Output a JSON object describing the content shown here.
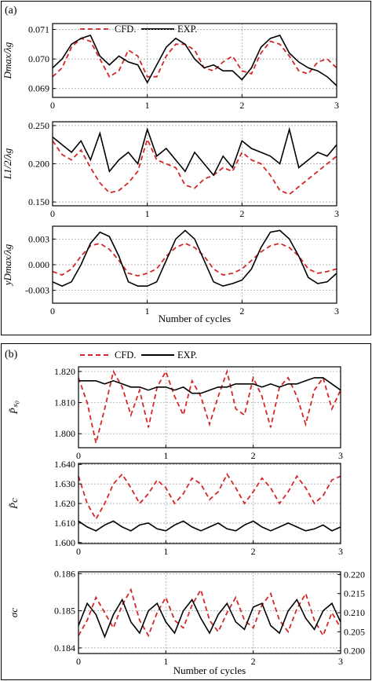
{
  "figure": {
    "parts": [
      {
        "label": "(a)",
        "legend": [
          "CFD.",
          "EXP."
        ]
      },
      {
        "label": "(b)",
        "legend": [
          "CFD.",
          "EXP."
        ]
      }
    ]
  },
  "chart_data": [
    {
      "type": "line",
      "id": "a1",
      "ylabel": "Dmax/λg",
      "xlabel": "",
      "xlim": [
        0,
        3
      ],
      "ylim": [
        0.0687,
        0.0712
      ],
      "xticks": [
        "0",
        "1",
        "2",
        "3"
      ],
      "yticks": [
        "0.069",
        "0.070",
        "0.071"
      ],
      "ytickvals": [
        0.069,
        0.07,
        0.071
      ],
      "grid": true,
      "series": [
        {
          "name": "CFD.",
          "color": "#d62728",
          "dash": true,
          "x": [
            0,
            0.1,
            0.2,
            0.3,
            0.4,
            0.5,
            0.6,
            0.7,
            0.8,
            0.9,
            1.0,
            1.1,
            1.2,
            1.3,
            1.4,
            1.5,
            1.6,
            1.7,
            1.8,
            1.9,
            2.0,
            2.1,
            2.2,
            2.3,
            2.4,
            2.5,
            2.6,
            2.7,
            2.8,
            2.9,
            3.0
          ],
          "y": [
            0.0694,
            0.0697,
            0.0704,
            0.0707,
            0.0706,
            0.07,
            0.0694,
            0.0696,
            0.0703,
            0.0701,
            0.0694,
            0.0694,
            0.0701,
            0.0705,
            0.0705,
            0.0703,
            0.0697,
            0.0696,
            0.0699,
            0.0701,
            0.0696,
            0.0695,
            0.0702,
            0.0706,
            0.0705,
            0.0701,
            0.0696,
            0.0695,
            0.0699,
            0.07,
            0.0697
          ]
        },
        {
          "name": "EXP.",
          "color": "#000000",
          "dash": false,
          "x": [
            0,
            0.1,
            0.2,
            0.3,
            0.4,
            0.5,
            0.6,
            0.7,
            0.8,
            0.9,
            1.0,
            1.1,
            1.2,
            1.3,
            1.4,
            1.5,
            1.6,
            1.7,
            1.8,
            1.9,
            2.0,
            2.1,
            2.2,
            2.3,
            2.4,
            2.5,
            2.6,
            2.7,
            2.8,
            2.9,
            3.0
          ],
          "y": [
            0.0697,
            0.07,
            0.0705,
            0.0707,
            0.0708,
            0.0701,
            0.0698,
            0.0701,
            0.0699,
            0.0698,
            0.0692,
            0.0698,
            0.0704,
            0.0707,
            0.0705,
            0.07,
            0.0697,
            0.0698,
            0.0696,
            0.0696,
            0.0693,
            0.0697,
            0.0704,
            0.0707,
            0.0708,
            0.0702,
            0.0699,
            0.0697,
            0.0696,
            0.0694,
            0.0691
          ]
        }
      ]
    },
    {
      "type": "line",
      "id": "a2",
      "ylabel": "L1/2/λg",
      "xlabel": "",
      "xlim": [
        0,
        3
      ],
      "ylim": [
        0.145,
        0.255
      ],
      "xticks": [
        "0",
        "1",
        "2",
        "3"
      ],
      "yticks": [
        "0.150",
        "0.200",
        "0.250"
      ],
      "ytickvals": [
        0.15,
        0.2,
        0.25
      ],
      "grid": true,
      "series": [
        {
          "name": "CFD.",
          "color": "#d62728",
          "dash": true,
          "x": [
            0,
            0.1,
            0.2,
            0.3,
            0.4,
            0.5,
            0.6,
            0.7,
            0.8,
            0.9,
            1.0,
            1.1,
            1.2,
            1.3,
            1.4,
            1.5,
            1.6,
            1.7,
            1.8,
            1.9,
            2.0,
            2.1,
            2.2,
            2.3,
            2.4,
            2.5,
            2.6,
            2.7,
            2.8,
            2.9,
            3.0
          ],
          "y": [
            0.23,
            0.212,
            0.205,
            0.218,
            0.195,
            0.175,
            0.162,
            0.165,
            0.175,
            0.19,
            0.232,
            0.205,
            0.2,
            0.195,
            0.172,
            0.168,
            0.18,
            0.185,
            0.195,
            0.19,
            0.215,
            0.205,
            0.2,
            0.185,
            0.165,
            0.16,
            0.17,
            0.18,
            0.19,
            0.2,
            0.21
          ]
        },
        {
          "name": "EXP.",
          "color": "#000000",
          "dash": false,
          "x": [
            0,
            0.1,
            0.2,
            0.3,
            0.4,
            0.5,
            0.6,
            0.7,
            0.8,
            0.9,
            1.0,
            1.1,
            1.2,
            1.3,
            1.4,
            1.5,
            1.6,
            1.7,
            1.8,
            1.9,
            2.0,
            2.1,
            2.2,
            2.3,
            2.4,
            2.5,
            2.6,
            2.7,
            2.8,
            2.9,
            3.0
          ],
          "y": [
            0.235,
            0.225,
            0.215,
            0.23,
            0.205,
            0.24,
            0.19,
            0.205,
            0.215,
            0.2,
            0.245,
            0.21,
            0.22,
            0.205,
            0.19,
            0.215,
            0.2,
            0.185,
            0.21,
            0.195,
            0.23,
            0.22,
            0.215,
            0.21,
            0.2,
            0.245,
            0.195,
            0.205,
            0.215,
            0.21,
            0.225
          ]
        }
      ]
    },
    {
      "type": "line",
      "id": "a3",
      "ylabel": "yDmax/λg",
      "xlabel": "Number of cycles",
      "xlim": [
        0,
        3
      ],
      "ylim": [
        -0.0045,
        0.0045
      ],
      "xticks": [
        "0",
        "1",
        "2",
        "3"
      ],
      "yticks": [
        "-0.003",
        "0.000",
        "0.003"
      ],
      "ytickvals": [
        -0.003,
        0.0,
        0.003
      ],
      "grid": true,
      "series": [
        {
          "name": "CFD.",
          "color": "#d62728",
          "dash": true,
          "x": [
            0,
            0.1,
            0.2,
            0.3,
            0.4,
            0.5,
            0.6,
            0.7,
            0.8,
            0.9,
            1.0,
            1.1,
            1.2,
            1.3,
            1.4,
            1.5,
            1.6,
            1.7,
            1.8,
            1.9,
            2.0,
            2.1,
            2.2,
            2.3,
            2.4,
            2.5,
            2.6,
            2.7,
            2.8,
            2.9,
            3.0
          ],
          "y": [
            -0.0008,
            -0.0012,
            -0.0005,
            0.001,
            0.0022,
            0.0025,
            0.0018,
            0.0005,
            -0.001,
            -0.0013,
            -0.001,
            -0.0005,
            0.001,
            0.002,
            0.0025,
            0.002,
            0.001,
            -0.0005,
            -0.0012,
            -0.001,
            -0.0005,
            0.0005,
            0.0015,
            0.0022,
            0.0025,
            0.002,
            0.001,
            -0.0005,
            -0.001,
            -0.0008,
            -0.0005
          ]
        },
        {
          "name": "EXP.",
          "color": "#000000",
          "dash": false,
          "x": [
            0,
            0.1,
            0.2,
            0.3,
            0.4,
            0.5,
            0.6,
            0.7,
            0.8,
            0.9,
            1.0,
            1.1,
            1.2,
            1.3,
            1.4,
            1.5,
            1.6,
            1.7,
            1.8,
            1.9,
            2.0,
            2.1,
            2.2,
            2.3,
            2.4,
            2.5,
            2.6,
            2.7,
            2.8,
            2.9,
            3.0
          ],
          "y": [
            -0.002,
            -0.0025,
            -0.002,
            0.0,
            0.0025,
            0.0038,
            0.0033,
            0.001,
            -0.002,
            -0.0025,
            -0.0025,
            -0.002,
            0.0005,
            0.003,
            0.004,
            0.003,
            0.0005,
            -0.002,
            -0.0025,
            -0.0022,
            -0.0018,
            -0.0005,
            0.002,
            0.0038,
            0.004,
            0.003,
            0.001,
            -0.0015,
            -0.0022,
            -0.002,
            -0.001
          ]
        }
      ]
    },
    {
      "type": "line",
      "id": "b1",
      "ylabel": "P̃ₛ₀",
      "xlabel": "",
      "xlim": [
        0,
        3
      ],
      "ylim": [
        1.7955,
        1.8215
      ],
      "xticks": [
        "0",
        "1",
        "2",
        "3"
      ],
      "yticks": [
        "1.800",
        "1.810",
        "1.820"
      ],
      "ytickvals": [
        1.8,
        1.81,
        1.82
      ],
      "grid": true,
      "series": [
        {
          "name": "CFD.",
          "color": "#d62728",
          "dash": true,
          "x": [
            0,
            0.1,
            0.2,
            0.3,
            0.4,
            0.5,
            0.6,
            0.7,
            0.8,
            0.9,
            1.0,
            1.1,
            1.2,
            1.3,
            1.4,
            1.5,
            1.6,
            1.7,
            1.8,
            1.9,
            2.0,
            2.1,
            2.2,
            2.3,
            2.4,
            2.5,
            2.6,
            2.7,
            2.8,
            2.9,
            3.0
          ],
          "y": [
            1.818,
            1.81,
            1.797,
            1.808,
            1.82,
            1.815,
            1.806,
            1.814,
            1.802,
            1.815,
            1.82,
            1.812,
            1.806,
            1.817,
            1.812,
            1.803,
            1.812,
            1.82,
            1.808,
            1.806,
            1.818,
            1.812,
            1.802,
            1.815,
            1.818,
            1.812,
            1.803,
            1.814,
            1.818,
            1.808,
            1.814
          ]
        },
        {
          "name": "EXP.",
          "color": "#000000",
          "dash": false,
          "x": [
            0,
            0.1,
            0.2,
            0.3,
            0.4,
            0.5,
            0.6,
            0.7,
            0.8,
            0.9,
            1.0,
            1.1,
            1.2,
            1.3,
            1.4,
            1.5,
            1.6,
            1.7,
            1.8,
            1.9,
            2.0,
            2.1,
            2.2,
            2.3,
            2.4,
            2.5,
            2.6,
            2.7,
            2.8,
            2.9,
            3.0
          ],
          "y": [
            1.817,
            1.817,
            1.817,
            1.816,
            1.817,
            1.816,
            1.815,
            1.815,
            1.814,
            1.815,
            1.815,
            1.814,
            1.815,
            1.813,
            1.813,
            1.814,
            1.815,
            1.815,
            1.816,
            1.816,
            1.816,
            1.815,
            1.816,
            1.815,
            1.816,
            1.816,
            1.817,
            1.818,
            1.818,
            1.816,
            1.814
          ]
        }
      ]
    },
    {
      "type": "line",
      "id": "b2",
      "ylabel": "P̃c",
      "xlabel": "",
      "xlim": [
        0,
        3
      ],
      "ylim": [
        1.5995,
        1.6405
      ],
      "xticks": [
        "0",
        "1",
        "2",
        "3"
      ],
      "yticks": [
        "1.600",
        "1.610",
        "1.620",
        "1.630",
        "1.640"
      ],
      "ytickvals": [
        1.6,
        1.61,
        1.62,
        1.63,
        1.64
      ],
      "grid": true,
      "series": [
        {
          "name": "CFD.",
          "color": "#d62728",
          "dash": true,
          "x": [
            0,
            0.1,
            0.2,
            0.3,
            0.4,
            0.5,
            0.6,
            0.7,
            0.8,
            0.9,
            1.0,
            1.1,
            1.2,
            1.3,
            1.4,
            1.5,
            1.6,
            1.7,
            1.8,
            1.9,
            2.0,
            2.1,
            2.2,
            2.3,
            2.4,
            2.5,
            2.6,
            2.7,
            2.8,
            2.9,
            3.0
          ],
          "y": [
            1.634,
            1.62,
            1.612,
            1.62,
            1.63,
            1.635,
            1.628,
            1.62,
            1.625,
            1.632,
            1.628,
            1.62,
            1.625,
            1.633,
            1.63,
            1.622,
            1.626,
            1.635,
            1.628,
            1.62,
            1.626,
            1.633,
            1.628,
            1.62,
            1.626,
            1.634,
            1.628,
            1.62,
            1.624,
            1.632,
            1.634
          ]
        },
        {
          "name": "EXP.",
          "color": "#000000",
          "dash": false,
          "x": [
            0,
            0.1,
            0.2,
            0.3,
            0.4,
            0.5,
            0.6,
            0.7,
            0.8,
            0.9,
            1.0,
            1.1,
            1.2,
            1.3,
            1.4,
            1.5,
            1.6,
            1.7,
            1.8,
            1.9,
            2.0,
            2.1,
            2.2,
            2.3,
            2.4,
            2.5,
            2.6,
            2.7,
            2.8,
            2.9,
            3.0
          ],
          "y": [
            1.611,
            1.608,
            1.606,
            1.609,
            1.611,
            1.608,
            1.606,
            1.609,
            1.61,
            1.607,
            1.606,
            1.609,
            1.611,
            1.608,
            1.606,
            1.608,
            1.61,
            1.607,
            1.606,
            1.609,
            1.611,
            1.608,
            1.606,
            1.608,
            1.61,
            1.608,
            1.606,
            1.607,
            1.609,
            1.606,
            1.608
          ]
        }
      ]
    },
    {
      "type": "line",
      "id": "b3",
      "ylabel": "σc",
      "xlabel": "Number of cycles",
      "xlim": [
        0,
        3
      ],
      "ylim": [
        0.18385,
        0.18605
      ],
      "xticks": [
        "0",
        "1",
        "2",
        "3"
      ],
      "yticks": [
        "0.184",
        "0.185",
        "0.186"
      ],
      "ytickvals": [
        0.184,
        0.185,
        0.186
      ],
      "y2ticks": [
        "0.200",
        "0.205",
        "0.210",
        "0.215",
        "0.220"
      ],
      "y2tickvals": [
        0.2,
        0.205,
        0.21,
        0.215,
        0.22
      ],
      "y2lim": [
        0.1993,
        0.2207
      ],
      "grid": true,
      "series": [
        {
          "name": "CFD.",
          "color": "#d62728",
          "dash": true,
          "axis": "y2",
          "x": [
            0,
            0.1,
            0.2,
            0.3,
            0.4,
            0.5,
            0.6,
            0.7,
            0.8,
            0.9,
            1.0,
            1.1,
            1.2,
            1.3,
            1.4,
            1.5,
            1.6,
            1.7,
            1.8,
            1.9,
            2.0,
            2.1,
            2.2,
            2.3,
            2.4,
            2.5,
            2.6,
            2.7,
            2.8,
            2.9,
            3.0
          ],
          "y": [
            0.204,
            0.208,
            0.214,
            0.21,
            0.206,
            0.212,
            0.216,
            0.208,
            0.204,
            0.21,
            0.214,
            0.208,
            0.206,
            0.212,
            0.216,
            0.208,
            0.205,
            0.21,
            0.214,
            0.208,
            0.206,
            0.212,
            0.215,
            0.208,
            0.205,
            0.211,
            0.215,
            0.208,
            0.204,
            0.21,
            0.206
          ]
        },
        {
          "name": "EXP.",
          "color": "#000000",
          "dash": false,
          "axis": "y1",
          "x": [
            0,
            0.1,
            0.2,
            0.3,
            0.4,
            0.5,
            0.6,
            0.7,
            0.8,
            0.9,
            1.0,
            1.1,
            1.2,
            1.3,
            1.4,
            1.5,
            1.6,
            1.7,
            1.8,
            1.9,
            2.0,
            2.1,
            2.2,
            2.3,
            2.4,
            2.5,
            2.6,
            2.7,
            2.8,
            2.9,
            3.0
          ],
          "y": [
            0.1846,
            0.1852,
            0.1849,
            0.1843,
            0.1849,
            0.1853,
            0.1847,
            0.1844,
            0.185,
            0.1852,
            0.1847,
            0.1844,
            0.185,
            0.1853,
            0.1848,
            0.1844,
            0.1849,
            0.1852,
            0.1847,
            0.1845,
            0.1851,
            0.1852,
            0.1846,
            0.1844,
            0.185,
            0.1853,
            0.1848,
            0.1845,
            0.185,
            0.1852,
            0.1847
          ]
        }
      ]
    }
  ]
}
